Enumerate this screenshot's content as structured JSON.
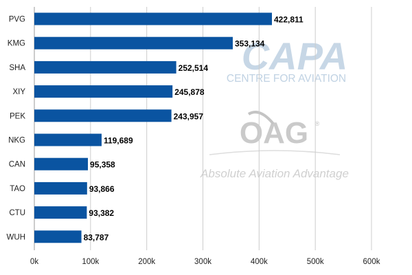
{
  "chart_data": {
    "type": "bar",
    "orientation": "horizontal",
    "categories": [
      "PVG",
      "KMG",
      "SHA",
      "XIY",
      "PEK",
      "NKG",
      "CAN",
      "TAO",
      "CTU",
      "WUH"
    ],
    "values": [
      422811,
      353134,
      252514,
      245878,
      243957,
      119689,
      95358,
      93866,
      93382,
      83787
    ],
    "value_labels": [
      "422,811",
      "353,134",
      "252,514",
      "245,878",
      "243,957",
      "119,689",
      "95,358",
      "93,866",
      "93,382",
      "83,787"
    ],
    "xlim": [
      0,
      600000
    ],
    "x_ticks": [
      0,
      100000,
      200000,
      300000,
      400000,
      500000,
      600000
    ],
    "x_tick_labels": [
      "0k",
      "100k",
      "200k",
      "300k",
      "400k",
      "500k",
      "600k"
    ],
    "title": "",
    "xlabel": "",
    "ylabel": "",
    "grid": "vertical",
    "legend": "none",
    "bar_color": "#0a54a1",
    "grid_color": "#cccccc"
  },
  "watermark": {
    "capa_logo": "CAPA",
    "capa_subtitle": "CENTRE FOR AVIATION",
    "oag_logo": "OAG",
    "oag_registered": "®",
    "oag_tagline": "Absolute Aviation Advantage"
  }
}
